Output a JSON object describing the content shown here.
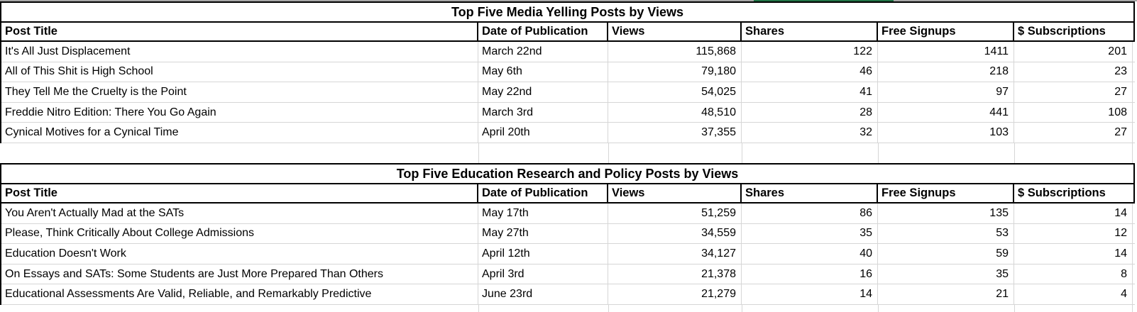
{
  "sheet": {
    "kind": "spreadsheet report",
    "colors": {
      "border_black": "#000000",
      "gridline_gray": "#d6d6d6",
      "top_gridline_gray": "#a6a6a6",
      "selection_green": "#217346",
      "background": "#ffffff"
    }
  },
  "tables": [
    {
      "title": "Top Five Media Yelling Posts by Views",
      "headers": [
        "Post Title",
        "Date of Publication",
        "Views",
        "Shares",
        "Free Signups",
        "$ Subscriptions"
      ],
      "rows": [
        [
          "It's All Just Displacement",
          "March 22nd",
          "115,868",
          "122",
          "1411",
          "201"
        ],
        [
          "All of This Shit is High School",
          "May 6th",
          "79,180",
          "46",
          "218",
          "23"
        ],
        [
          "They Tell Me the Cruelty is the Point",
          "May 22nd",
          "54,025",
          "41",
          "97",
          "27"
        ],
        [
          "Freddie Nitro Edition: There You Go Again",
          "March 3rd",
          "48,510",
          "28",
          "441",
          "108"
        ],
        [
          "Cynical Motives for a Cynical Time",
          "April 20th",
          "37,355",
          "32",
          "103",
          "27"
        ]
      ]
    },
    {
      "title": "Top Five Education Research and Policy Posts by Views",
      "headers": [
        "Post Title",
        "Date of Publication",
        "Views",
        "Shares",
        "Free Signups",
        "$ Subscriptions"
      ],
      "rows": [
        [
          "You Aren't Actually Mad at the SATs",
          "May 17th",
          "51,259",
          "86",
          "135",
          "14"
        ],
        [
          "Please, Think Critically About College Admissions",
          "May 27th",
          "34,559",
          "35",
          "53",
          "12"
        ],
        [
          "Education Doesn't Work",
          "April 12th",
          "34,127",
          "40",
          "59",
          "14"
        ],
        [
          "On Essays and SATs: Some Students are Just More Prepared Than Others",
          "April 3rd",
          "21,378",
          "16",
          "35",
          "8"
        ],
        [
          "Educational Assessments Are Valid, Reliable, and Remarkably Predictive",
          "June 23rd",
          "21,279",
          "14",
          "21",
          "4"
        ]
      ]
    }
  ]
}
